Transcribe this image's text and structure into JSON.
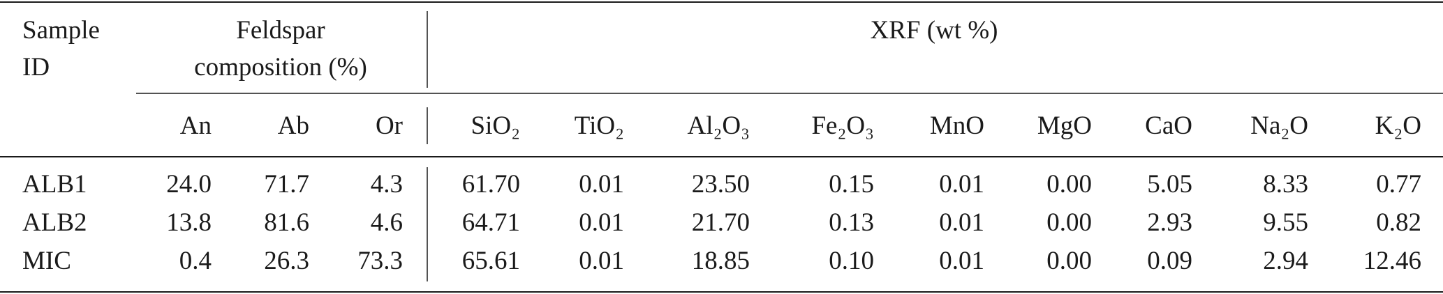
{
  "table": {
    "sample_id": [
      "Sample",
      "ID"
    ],
    "feldspar": [
      "Feldspar",
      "composition (%)"
    ],
    "xrf": "XRF (wt %)",
    "columns": [
      "An",
      "Ab",
      "Or",
      "SiO₂",
      "TiO₂",
      "Al₂O₃",
      "Fe₂O₃",
      "MnO",
      "MgO",
      "CaO",
      "Na₂O",
      "K₂O"
    ],
    "rows": [
      [
        "ALB1",
        "24.0",
        "71.7",
        "4.3",
        "61.70",
        "0.01",
        "23.50",
        "0.15",
        "0.01",
        "0.00",
        "5.05",
        "8.33",
        "0.77"
      ],
      [
        "ALB2",
        "13.8",
        "81.6",
        "4.6",
        "64.71",
        "0.01",
        "21.70",
        "0.13",
        "0.01",
        "0.00",
        "2.93",
        "9.55",
        "0.82"
      ],
      [
        "MIC",
        "0.4",
        "26.3",
        "73.3",
        "65.61",
        "0.01",
        "18.85",
        "0.10",
        "0.01",
        "0.00",
        "0.09",
        "2.94",
        "12.46"
      ]
    ]
  }
}
